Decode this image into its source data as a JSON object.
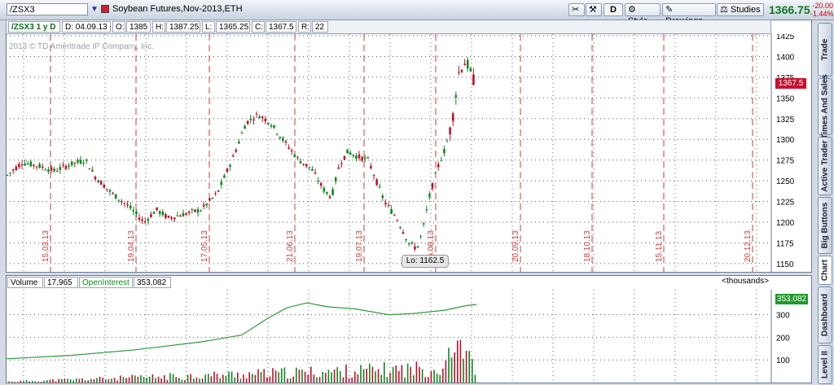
{
  "header": {
    "symbol": "/ZSX3",
    "description": "Soybean Futures,Nov-2013,ETH",
    "buttons": {
      "d": "D",
      "style": "Style",
      "drawings": "Drawings",
      "studies": "Studies"
    },
    "last_price": "1366.75",
    "change": "-20.00",
    "change_pct": "-1.44%"
  },
  "infobar": {
    "period": "/ZSX3 1 y D",
    "date": "D: 04.09.13",
    "open_label": "O:",
    "open": "1385",
    "high_label": "H:",
    "high": "1387.25",
    "low_label": "L:",
    "low": "1365.25",
    "close_label": "C:",
    "close": "1367.5",
    "range_label": "R:",
    "range": "22"
  },
  "price_chart": {
    "copyright": "2013 © TD Ameritrade IP Company, Inc.",
    "y_ticks": [
      "1425",
      "1400",
      "1375",
      "1350",
      "1325",
      "1300",
      "1275",
      "1250",
      "1225",
      "1200",
      "1175",
      "1150"
    ],
    "current_price_tag": "1367.5",
    "low_tag": "Lo: 1162.5",
    "date_markers": [
      "15.03.13",
      "19.04.13",
      "17.05.13",
      "21.06.13",
      "19.07.13",
      "16.08.13",
      "20.09.13",
      "18.10.13",
      "15.11.13",
      "20.12.13"
    ],
    "colors": {
      "up": "#0a8a1a",
      "down": "#c0102a",
      "marker": "#d23a3a",
      "tag": "#c8102e"
    }
  },
  "volume_chart": {
    "volume_label": "Volume",
    "volume": "17,965",
    "oi_label": "OpenInterest",
    "oi": "353,082",
    "units": "<thousands>",
    "oi_tag": "353.082",
    "y_ticks": [
      "300",
      "200",
      "100"
    ]
  },
  "side_tabs": [
    "Trade",
    "Times And Sales",
    "Active Trader",
    "Big Buttons",
    "Chart",
    "Dashboard",
    "Level II"
  ]
}
